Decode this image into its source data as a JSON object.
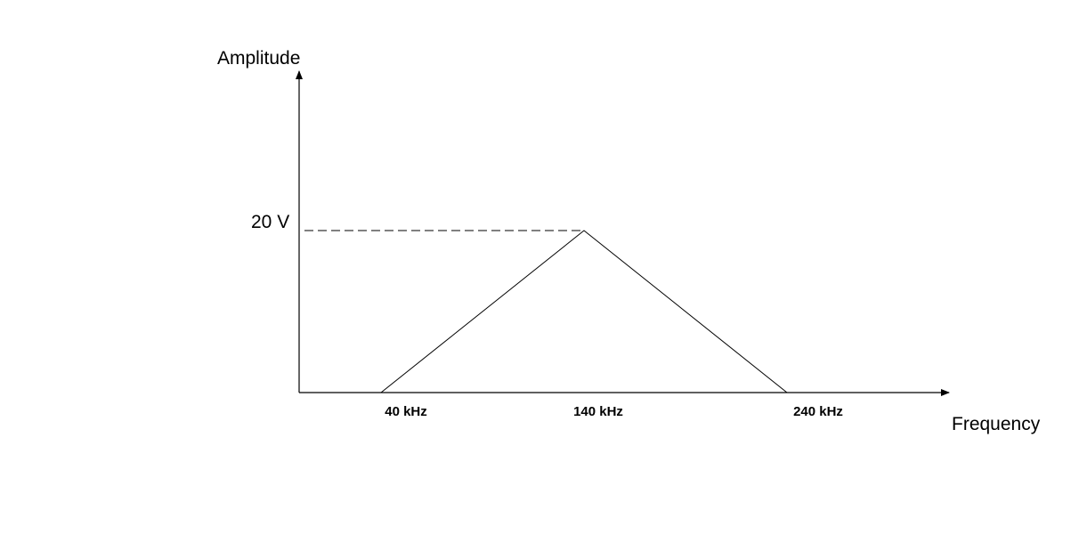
{
  "chart_data": {
    "type": "line",
    "xlabel": "Frequency",
    "ylabel": "Amplitude",
    "x_unit": "kHz",
    "y_unit": "V",
    "x_ticks": [
      "40 kHz",
      "140 kHz",
      "240 kHz"
    ],
    "y_ticks": [
      "20 V"
    ],
    "series": [
      {
        "x": [
          40,
          140,
          240
        ],
        "y": [
          0,
          20,
          0
        ]
      }
    ],
    "reference_line": {
      "y": 20,
      "from_x": 0,
      "to_x": 140,
      "style": "dashed"
    },
    "grid": false,
    "colors": {
      "line": "#000000",
      "background": "#ffffff"
    }
  }
}
